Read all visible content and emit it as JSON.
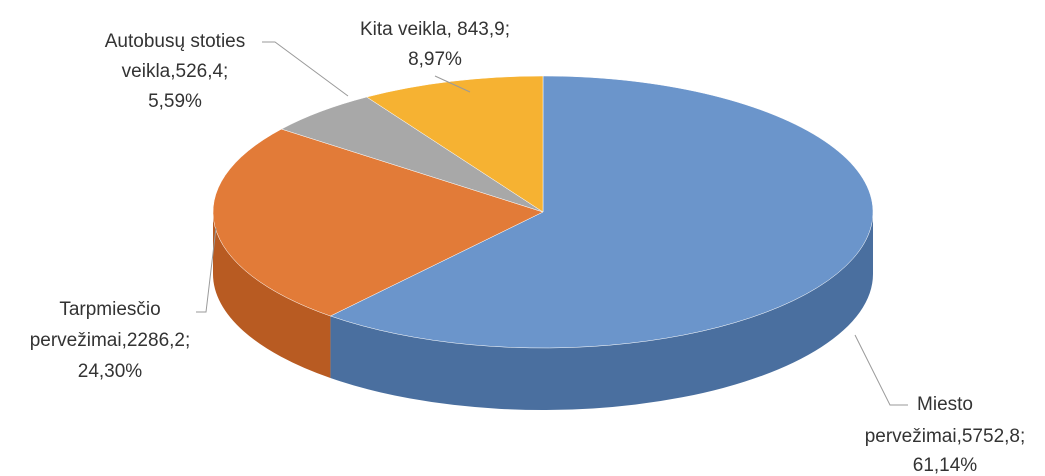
{
  "chart_data": {
    "type": "pie",
    "labels": [
      [
        "Miesto",
        "pervežimai,5752,8;",
        "61,14%"
      ],
      [
        "Tarpmiesčio",
        "pervežimai,2286,2;",
        "24,30%"
      ],
      [
        "Autobusų stoties",
        "veikla,526,4;",
        "5,59%"
      ],
      [
        "Kita veikla, 843,9;",
        "8,97%"
      ]
    ],
    "values": [
      5752.8,
      2286.2,
      526.4,
      843.9
    ],
    "percents": [
      61.14,
      24.3,
      5.59,
      8.97
    ],
    "colors": [
      "#6b95cb",
      "#e27b38",
      "#a8a8a8",
      "#f6b232"
    ],
    "side_colors": [
      "#4a6f9f",
      "#b85b22",
      "#7e7e7e",
      "#c98a1c"
    ]
  }
}
